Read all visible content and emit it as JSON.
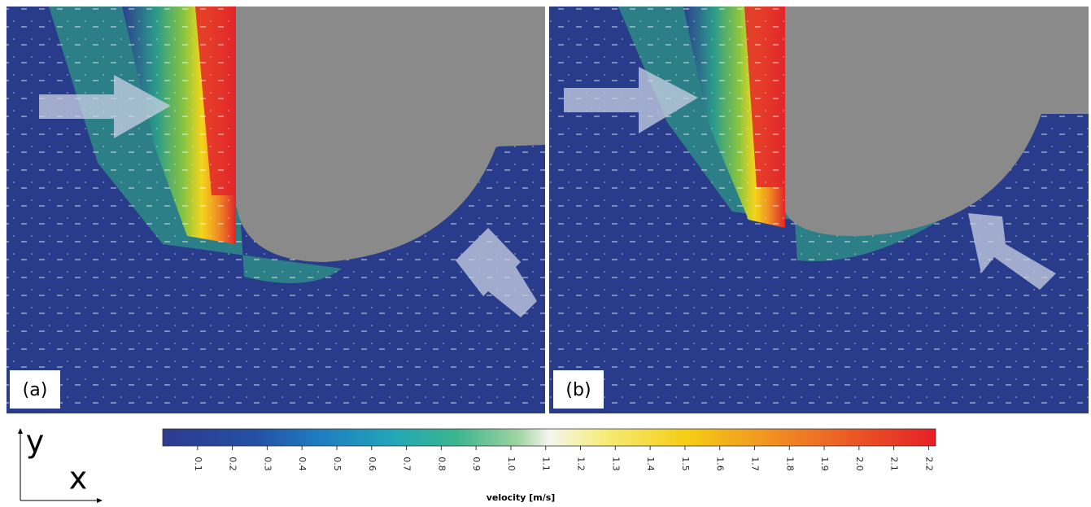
{
  "panels": [
    {
      "label": "(a)"
    },
    {
      "label": "(b)"
    }
  ],
  "axes": {
    "y": "y",
    "x": "x"
  },
  "colorbar": {
    "label": "velocity [m/s]",
    "range": [
      0,
      2.22
    ],
    "ticks": [
      0.1,
      0.2,
      0.3,
      0.4,
      0.5,
      0.6,
      0.7,
      0.8,
      0.9,
      {
        "value": 1.0,
        "label": "1.0"
      },
      1.1,
      1.2,
      1.3,
      1.4,
      1.5,
      1.6,
      1.7,
      1.8,
      1.9,
      {
        "value": 2.0,
        "label": "2.0"
      },
      2.1,
      2.2
    ]
  }
}
